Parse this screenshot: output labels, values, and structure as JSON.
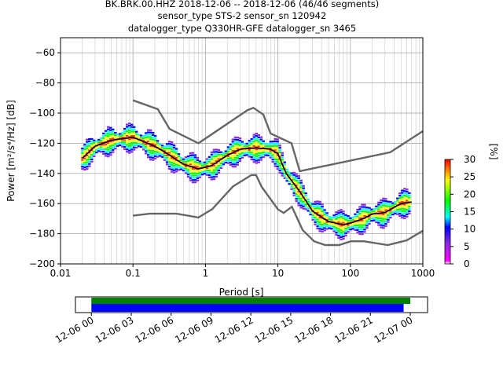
{
  "title": {
    "line1": "BK.BRK.00.HHZ   2018-12-06 -- 2018-12-06  (46/46 segments)",
    "line2": "sensor_type STS-2 sensor_sn 120942",
    "line3": "datalogger_type Q330HR-GFE datalogger_sn 3465"
  },
  "chart_data": [
    {
      "type": "heatmap",
      "title": "BK.BRK.00.HHZ   2018-12-06 -- 2018-12-06  (46/46 segments)",
      "xlabel": "Period [s]",
      "ylabel": "Power [m²/s⁴/Hz] [dB]",
      "x_scale": "log",
      "xlim": [
        0.01,
        1000
      ],
      "ylim": [
        -200,
        -50
      ],
      "x_ticks": [
        0.01,
        0.1,
        1,
        10,
        100,
        1000
      ],
      "x_tick_labels": [
        "0.01",
        "0.1",
        "1",
        "10",
        "100",
        "1000"
      ],
      "y_ticks": [
        -200,
        -180,
        -160,
        -140,
        -120,
        -100,
        -80,
        -60
      ],
      "y_tick_labels": [
        "−200",
        "−180",
        "−160",
        "−140",
        "−120",
        "−100",
        "−80",
        "−60"
      ],
      "grid": true,
      "colorbar": {
        "label": "[%]",
        "range": [
          0,
          30
        ],
        "ticks": [
          0,
          5,
          10,
          15,
          20,
          25,
          30
        ],
        "tick_labels": [
          "0",
          "5",
          "10",
          "15",
          "20",
          "25",
          "30"
        ]
      },
      "series": [
        {
          "name": "",
          "role": "mode",
          "color": "#000000",
          "points": [
            [
              0.02,
              -130
            ],
            [
              0.03,
              -122
            ],
            [
              0.05,
              -118
            ],
            [
              0.1,
              -116
            ],
            [
              0.2,
              -122
            ],
            [
              0.3,
              -127
            ],
            [
              0.5,
              -134
            ],
            [
              0.8,
              -137
            ],
            [
              1.2,
              -135
            ],
            [
              2,
              -128
            ],
            [
              3,
              -124
            ],
            [
              5,
              -123
            ],
            [
              8,
              -124
            ],
            [
              10,
              -127
            ],
            [
              13,
              -140
            ],
            [
              20,
              -152
            ],
            [
              30,
              -165
            ],
            [
              50,
              -172
            ],
            [
              80,
              -174
            ],
            [
              100,
              -173
            ],
            [
              150,
              -170
            ],
            [
              200,
              -167
            ],
            [
              300,
              -166
            ],
            [
              500,
              -160
            ],
            [
              700,
              -159
            ]
          ]
        },
        {
          "name": "",
          "role": "new high noise model",
          "color": "#666666",
          "points": [
            [
              0.1,
              -91.5
            ],
            [
              0.22,
              -97.4
            ],
            [
              0.32,
              -110.5
            ],
            [
              0.8,
              -120
            ],
            [
              3.8,
              -98
            ],
            [
              4.6,
              -96.5
            ],
            [
              6.3,
              -101
            ],
            [
              7.9,
              -113.5
            ],
            [
              15.4,
              -120
            ],
            [
              20,
              -138.5
            ],
            [
              354.8,
              -126
            ],
            [
              1000,
              -112
            ]
          ]
        },
        {
          "name": "",
          "role": "new low noise model",
          "color": "#666666",
          "points": [
            [
              0.1,
              -168
            ],
            [
              0.17,
              -166.7
            ],
            [
              0.4,
              -166.7
            ],
            [
              0.8,
              -169.2
            ],
            [
              1.24,
              -163.7
            ],
            [
              2.4,
              -148.6
            ],
            [
              4.3,
              -141.1
            ],
            [
              5,
              -141.1
            ],
            [
              6,
              -149
            ],
            [
              10,
              -163.8
            ],
            [
              12,
              -166.2
            ],
            [
              15.6,
              -162.1
            ],
            [
              21.9,
              -177.5
            ],
            [
              31.6,
              -185
            ],
            [
              45,
              -187.5
            ],
            [
              70,
              -187.5
            ],
            [
              101,
              -185
            ],
            [
              154,
              -185
            ],
            [
              328,
              -187.5
            ],
            [
              600,
              -184.4
            ],
            [
              1000,
              -178
            ]
          ]
        }
      ]
    },
    {
      "type": "timeline",
      "title": "",
      "x_ticks": [
        "12-06 00",
        "12-06 03",
        "12-06 06",
        "12-06 09",
        "12-06 12",
        "12-06 15",
        "12-06 18",
        "12-06 21",
        "12-07 00"
      ],
      "xlim_hours": [
        -1.2,
        25.3
      ],
      "series": [
        {
          "name": "",
          "color": "#008000",
          "start_hours": 0,
          "end_hours": 24.0
        },
        {
          "name": "",
          "color": "#0000ff",
          "start_hours": 0,
          "end_hours": 23.5
        }
      ]
    }
  ]
}
